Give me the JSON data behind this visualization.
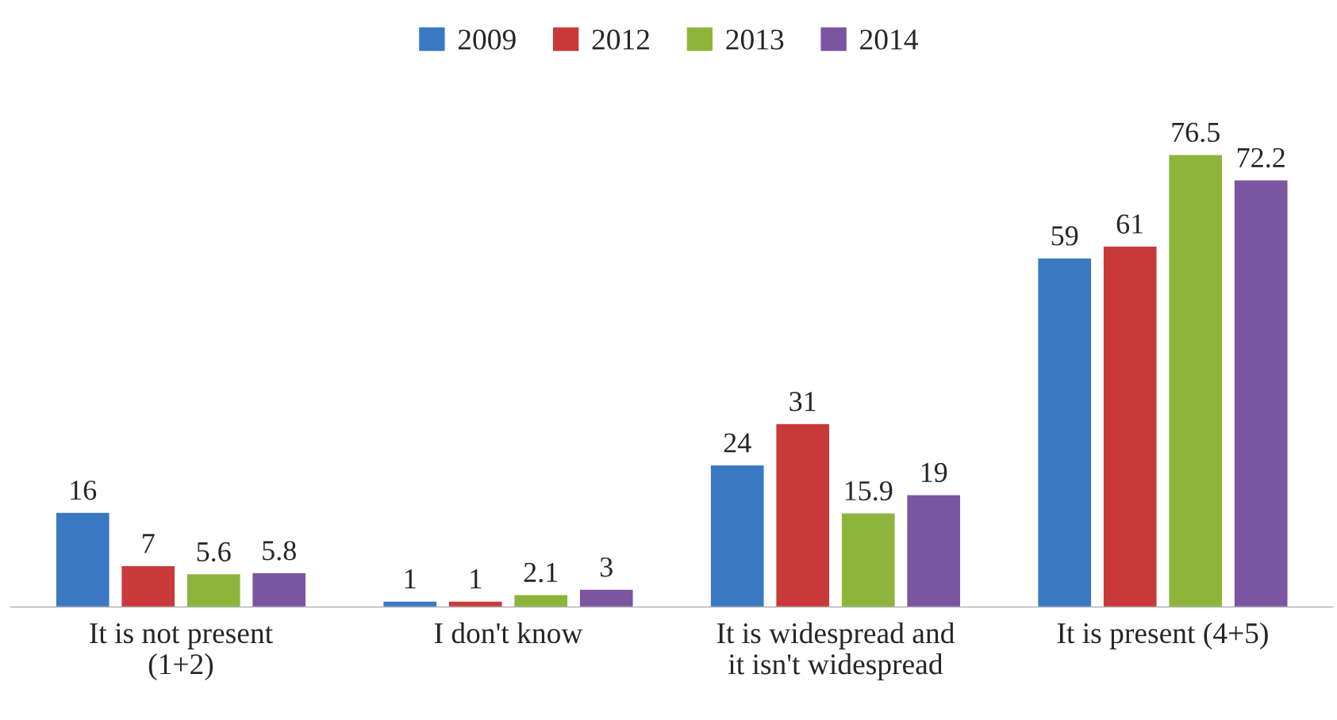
{
  "chart_data": {
    "type": "bar",
    "categories": [
      "It is not present\n(1+2)",
      "I don't know",
      "It is widespread and\nit isn't widespread",
      "It is present (4+5)"
    ],
    "series": [
      {
        "name": "2009",
        "color": "#3a78c4",
        "values": [
          16,
          1,
          24,
          59
        ]
      },
      {
        "name": "2012",
        "color": "#c9393a",
        "values": [
          7,
          1,
          31,
          61
        ]
      },
      {
        "name": "2013",
        "color": "#8db53c",
        "values": [
          5.6,
          2.1,
          15.9,
          76.5
        ]
      },
      {
        "name": "2014",
        "color": "#7b55a0",
        "values": [
          5.8,
          3,
          19,
          72.2
        ]
      }
    ],
    "data_labels": true,
    "legend": "top",
    "grid": false
  }
}
